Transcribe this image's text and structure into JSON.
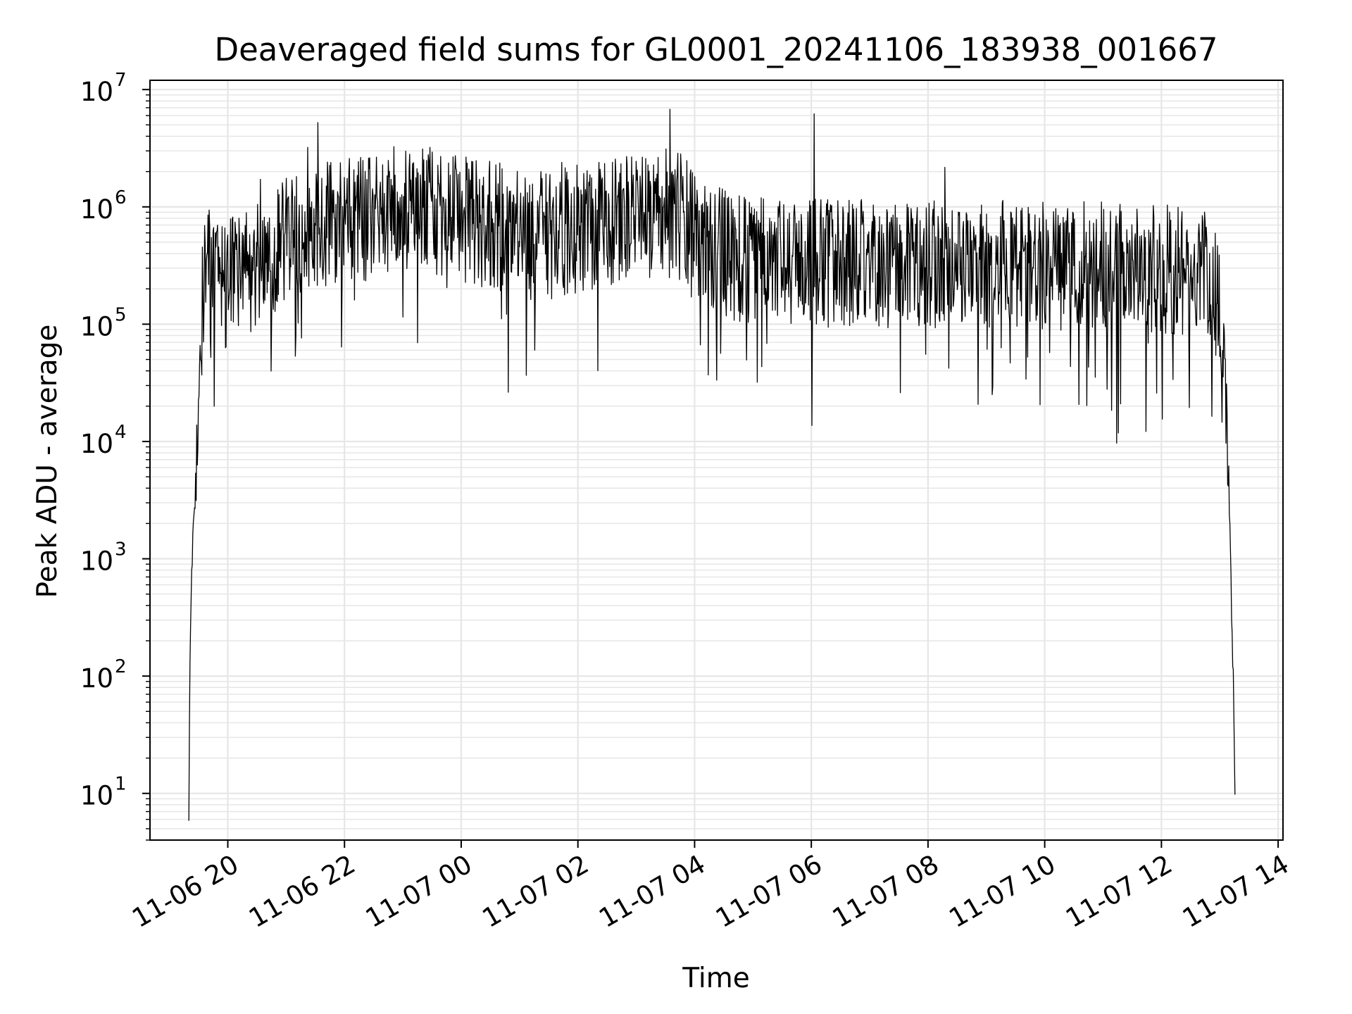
{
  "chart_data": {
    "type": "line",
    "title": "Deaveraged field sums for GL0001_20241106_183938_001667",
    "xlabel": "Time",
    "ylabel": "Peak ADU - average",
    "yscale": "log",
    "ylim": [
      4,
      12000000
    ],
    "xlim": [
      "2024-11-06 18:40",
      "2024-11-07 14:05"
    ],
    "grid": true,
    "line_color": "#000000",
    "grid_color": "#e6e6e6",
    "x_ticks": [
      {
        "t": "2024-11-06 20:00",
        "label": "11-06 20"
      },
      {
        "t": "2024-11-06 22:00",
        "label": "11-06 22"
      },
      {
        "t": "2024-11-07 00:00",
        "label": "11-07 00"
      },
      {
        "t": "2024-11-07 02:00",
        "label": "11-07 02"
      },
      {
        "t": "2024-11-07 04:00",
        "label": "11-07 04"
      },
      {
        "t": "2024-11-07 06:00",
        "label": "11-07 06"
      },
      {
        "t": "2024-11-07 08:00",
        "label": "11-07 08"
      },
      {
        "t": "2024-11-07 10:00",
        "label": "11-07 10"
      },
      {
        "t": "2024-11-07 12:00",
        "label": "11-07 12"
      },
      {
        "t": "2024-11-07 14:00",
        "label": "11-07 14"
      }
    ],
    "y_ticks": [
      {
        "value": 10,
        "base": "10",
        "exp": "1"
      },
      {
        "value": 100,
        "base": "10",
        "exp": "2"
      },
      {
        "value": 1000,
        "base": "10",
        "exp": "3"
      },
      {
        "value": 10000,
        "base": "10",
        "exp": "4"
      },
      {
        "value": 100000,
        "base": "10",
        "exp": "5"
      },
      {
        "value": 1000000,
        "base": "10",
        "exp": "6"
      },
      {
        "value": 10000000,
        "base": "10",
        "exp": "7"
      }
    ],
    "series": [
      {
        "x": [
          "2024-11-06 19:20",
          "2024-11-06 19:21",
          "2024-11-06 19:23",
          "2024-11-06 19:25",
          "2024-11-06 19:28",
          "2024-11-06 19:31",
          "2024-11-06 19:34",
          "2024-11-06 19:37",
          "2024-11-06 19:40",
          "2024-11-06 19:44",
          "2024-11-06 19:48",
          "2024-11-06 19:55",
          "2024-11-06 20:05",
          "2024-11-06 20:30",
          "2024-11-06 21:00",
          "2024-11-06 21:30",
          "2024-11-06 22:00",
          "2024-11-06 22:30",
          "2024-11-06 23:00",
          "2024-11-06 23:30",
          "2024-11-07 00:00",
          "2024-11-07 00:30",
          "2024-11-07 01:00",
          "2024-11-07 01:30",
          "2024-11-07 02:00",
          "2024-11-07 02:30",
          "2024-11-07 03:00",
          "2024-11-07 03:30",
          "2024-11-07 03:50",
          "2024-11-07 04:10",
          "2024-11-07 04:30",
          "2024-11-07 05:00",
          "2024-11-07 06:00",
          "2024-11-07 07:00",
          "2024-11-07 08:00",
          "2024-11-07 09:00",
          "2024-11-07 10:00",
          "2024-11-07 11:00",
          "2024-11-07 12:00",
          "2024-11-07 12:30",
          "2024-11-07 12:45",
          "2024-11-07 12:55",
          "2024-11-07 13:00",
          "2024-11-07 13:05",
          "2024-11-07 13:08",
          "2024-11-07 13:11",
          "2024-11-07 13:14",
          "2024-11-07 13:16"
        ],
        "y": [
          5,
          100,
          1000,
          2000,
          8000,
          40000,
          150000,
          300000,
          300000,
          250000,
          200000,
          200000,
          250000,
          300000,
          500000,
          700000,
          750000,
          850000,
          1000000,
          900000,
          800000,
          700000,
          650000,
          600000,
          650000,
          700000,
          800000,
          900000,
          800000,
          500000,
          400000,
          350000,
          330000,
          330000,
          330000,
          320000,
          320000,
          320000,
          300000,
          280000,
          260000,
          200000,
          120000,
          40000,
          8000,
          1000,
          100,
          5
        ]
      }
    ],
    "annotations": []
  }
}
